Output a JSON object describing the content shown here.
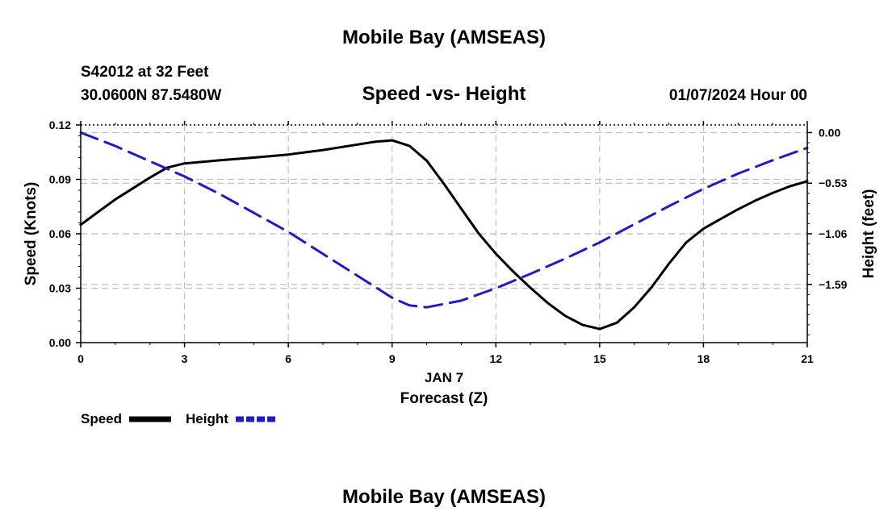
{
  "header": {
    "title": "Mobile Bay (AMSEAS)",
    "station": "S42012 at 32 Feet",
    "location": "30.0600N  87.5480W",
    "datetime": "01/07/2024 Hour 00"
  },
  "footer": {
    "title": "Mobile Bay (AMSEAS)"
  },
  "colors": {
    "speed": "#000000",
    "height": "#1c1cc8",
    "grid": "#c0c0c0"
  },
  "chart_data": {
    "type": "line",
    "title": "Speed -vs- Height",
    "xlabel": "Forecast (Z)",
    "xsublabel": "JAN 7",
    "ylabel": "Speed (Knots)",
    "y2label": "Height (feet)",
    "xlim": [
      0,
      21
    ],
    "ylim": [
      0,
      0.12
    ],
    "y2lim": [
      -2.2,
      0.08
    ],
    "xticks": [
      0,
      3,
      6,
      9,
      12,
      15,
      18,
      21
    ],
    "xtick_labels": [
      "0",
      "3",
      "6",
      "9",
      "12",
      "15",
      "18",
      "21"
    ],
    "yticks": [
      0,
      0.03,
      0.06,
      0.09,
      0.12
    ],
    "ytick_labels": [
      "0.00",
      "0.03",
      "0.06",
      "0.09",
      "0.12"
    ],
    "y2ticks": [
      0,
      -0.53,
      -1.06,
      -1.59
    ],
    "y2tick_labels": [
      "0.00",
      "−0.53",
      "−1.06",
      "−1.59"
    ],
    "legend": [
      "Speed",
      "Height"
    ],
    "legend_position": "bottom-left",
    "grid": true,
    "series": [
      {
        "name": "Speed",
        "axis": "left",
        "style": "solid",
        "x": [
          0,
          0.5,
          1,
          1.5,
          2,
          2.5,
          3,
          4,
          5,
          6,
          7,
          8,
          8.5,
          9,
          9.5,
          10,
          10.5,
          11,
          11.5,
          12,
          12.5,
          13,
          13.5,
          14,
          14.5,
          15,
          15.5,
          16,
          16.5,
          17,
          17.5,
          18,
          18.5,
          19,
          19.5,
          20,
          20.5,
          21
        ],
        "y": [
          0.065,
          0.072,
          0.079,
          0.085,
          0.091,
          0.0965,
          0.0988,
          0.1005,
          0.102,
          0.1037,
          0.1062,
          0.1092,
          0.1107,
          0.1115,
          0.1085,
          0.1003,
          0.0875,
          0.0738,
          0.0602,
          0.049,
          0.0392,
          0.0302,
          0.0218,
          0.0148,
          0.0098,
          0.0075,
          0.011,
          0.0195,
          0.0305,
          0.0435,
          0.0552,
          0.0628,
          0.0682,
          0.0735,
          0.0783,
          0.0825,
          0.0862,
          0.089
        ]
      },
      {
        "name": "Height",
        "axis": "right",
        "style": "dashed",
        "x": [
          0,
          1,
          2,
          3,
          4,
          5,
          6,
          7,
          8,
          9,
          9.5,
          10,
          11,
          12,
          13,
          14,
          15,
          16,
          17,
          18,
          19,
          20,
          21
        ],
        "y": [
          0.0,
          -0.14,
          -0.3,
          -0.46,
          -0.64,
          -0.84,
          -1.04,
          -1.27,
          -1.5,
          -1.73,
          -1.81,
          -1.83,
          -1.76,
          -1.63,
          -1.48,
          -1.32,
          -1.15,
          -0.96,
          -0.77,
          -0.59,
          -0.43,
          -0.29,
          -0.16
        ]
      }
    ]
  }
}
